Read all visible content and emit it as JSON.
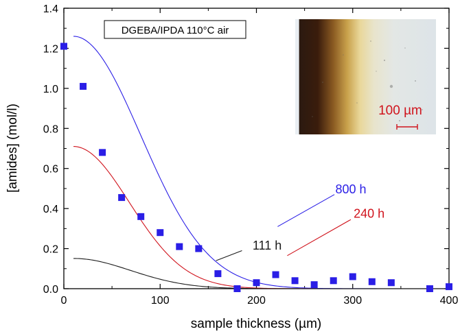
{
  "chart_data": {
    "type": "scatter",
    "title": "DGEBA/IPDA 110°C air",
    "xlabel": "sample thickness (µm)",
    "ylabel": "[amides] (mol/l)",
    "xlim": [
      0,
      400
    ],
    "ylim": [
      0,
      1.4
    ],
    "xticks": [
      "0",
      "100",
      "200",
      "300",
      "400"
    ],
    "yticks": [
      "0.0",
      "0.2",
      "0.4",
      "0.6",
      "0.8",
      "1.0",
      "1.2",
      "1.4"
    ],
    "grid": false,
    "points": {
      "color": "#2a1ee6",
      "x": [
        0,
        20,
        40,
        60,
        80,
        100,
        120,
        140,
        160,
        180,
        200,
        220,
        240,
        260,
        280,
        300,
        320,
        340,
        380,
        400
      ],
      "y": [
        1.21,
        1.01,
        0.68,
        0.455,
        0.36,
        0.28,
        0.21,
        0.2,
        0.075,
        0.0,
        0.03,
        0.07,
        0.04,
        0.02,
        0.04,
        0.06,
        0.035,
        0.03,
        0.0,
        0.01
      ]
    },
    "curves": [
      {
        "name": "800 h",
        "color": "#2a1ee6",
        "amplitude": 1.26,
        "sigma": 70,
        "x_start": 10,
        "label_x": 282,
        "label_y": 0.475,
        "leader": [
          [
            281,
            0.47
          ],
          [
            222,
            0.31
          ]
        ]
      },
      {
        "name": "240 h",
        "color": "#d0131c",
        "amplitude": 0.71,
        "sigma": 58,
        "x_start": 10,
        "label_x": 301,
        "label_y": 0.355,
        "leader": [
          [
            298,
            0.345
          ],
          [
            232,
            0.165
          ]
        ]
      },
      {
        "name": "111 h",
        "color": "#1a1a1a",
        "amplitude": 0.151,
        "sigma": 59,
        "x_start": 10,
        "label_x": 196,
        "label_y": 0.195,
        "leader": [
          [
            185,
            0.19
          ],
          [
            158,
            0.14
          ]
        ]
      }
    ],
    "inset": {
      "scale_label": "100 µm",
      "scale_color": "#d0131c"
    }
  }
}
